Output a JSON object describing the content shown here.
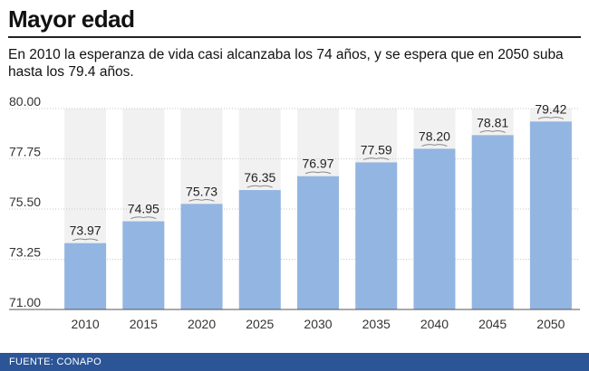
{
  "header": {
    "title": "Mayor edad",
    "subtitle": "En 2010 la esperanza de vida casi alcanzaba los 74 años, y se espera que en 2050 suba hasta los 79.4 años."
  },
  "footer": {
    "source": "FUENTE: CONAPO"
  },
  "colors": {
    "bar": "#93b5e1",
    "footer": "#2b5597",
    "stripe": "#e6e6e6"
  },
  "chart_data": {
    "type": "bar",
    "title": "Mayor edad",
    "xlabel": "",
    "ylabel": "",
    "categories": [
      "2010",
      "2015",
      "2020",
      "2025",
      "2030",
      "2035",
      "2040",
      "2045",
      "2050"
    ],
    "values": [
      73.97,
      74.95,
      75.73,
      76.35,
      76.97,
      77.59,
      78.2,
      78.81,
      79.42
    ],
    "value_labels": [
      "73.97",
      "74.95",
      "75.73",
      "76.35",
      "76.97",
      "77.59",
      "78.20",
      "78.81",
      "79.42"
    ],
    "ylim": [
      71.0,
      80.0
    ],
    "yticks": [
      71.0,
      73.25,
      75.5,
      77.75,
      80.0
    ],
    "ytick_labels": [
      "71.00",
      "73.25",
      "75.50",
      "77.75",
      "80.00"
    ],
    "grid": true
  }
}
